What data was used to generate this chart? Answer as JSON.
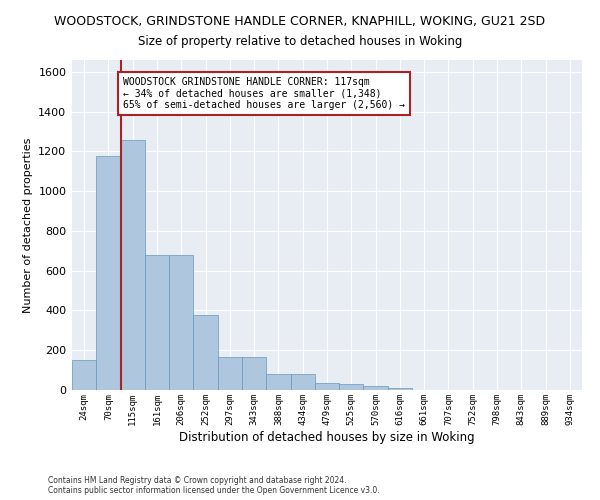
{
  "title": "WOODSTOCK, GRINDSTONE HANDLE CORNER, KNAPHILL, WOKING, GU21 2SD",
  "subtitle": "Size of property relative to detached houses in Woking",
  "xlabel": "Distribution of detached houses by size in Woking",
  "ylabel": "Number of detached properties",
  "categories": [
    "24sqm",
    "70sqm",
    "115sqm",
    "161sqm",
    "206sqm",
    "252sqm",
    "297sqm",
    "343sqm",
    "388sqm",
    "434sqm",
    "479sqm",
    "525sqm",
    "570sqm",
    "616sqm",
    "661sqm",
    "707sqm",
    "752sqm",
    "798sqm",
    "843sqm",
    "889sqm",
    "934sqm"
  ],
  "values": [
    150,
    1175,
    1260,
    680,
    680,
    375,
    165,
    165,
    83,
    83,
    35,
    28,
    22,
    12,
    0,
    0,
    0,
    0,
    0,
    0,
    0
  ],
  "bar_color": "#aec6de",
  "bar_edge_color": "#6699bb",
  "vline_x_index": 2,
  "vline_color": "#aa2222",
  "annotation_text": "WOODSTOCK GRINDSTONE HANDLE CORNER: 117sqm\n← 34% of detached houses are smaller (1,348)\n65% of semi-detached houses are larger (2,560) →",
  "annotation_box_color": "#ffffff",
  "annotation_box_edge": "#aa2222",
  "ylim": [
    0,
    1660
  ],
  "yticks": [
    0,
    200,
    400,
    600,
    800,
    1000,
    1200,
    1400,
    1600
  ],
  "background_color": "#e8edf4",
  "grid_color": "#ffffff",
  "fig_background": "#ffffff",
  "footer_line1": "Contains HM Land Registry data © Crown copyright and database right 2024.",
  "footer_line2": "Contains public sector information licensed under the Open Government Licence v3.0."
}
